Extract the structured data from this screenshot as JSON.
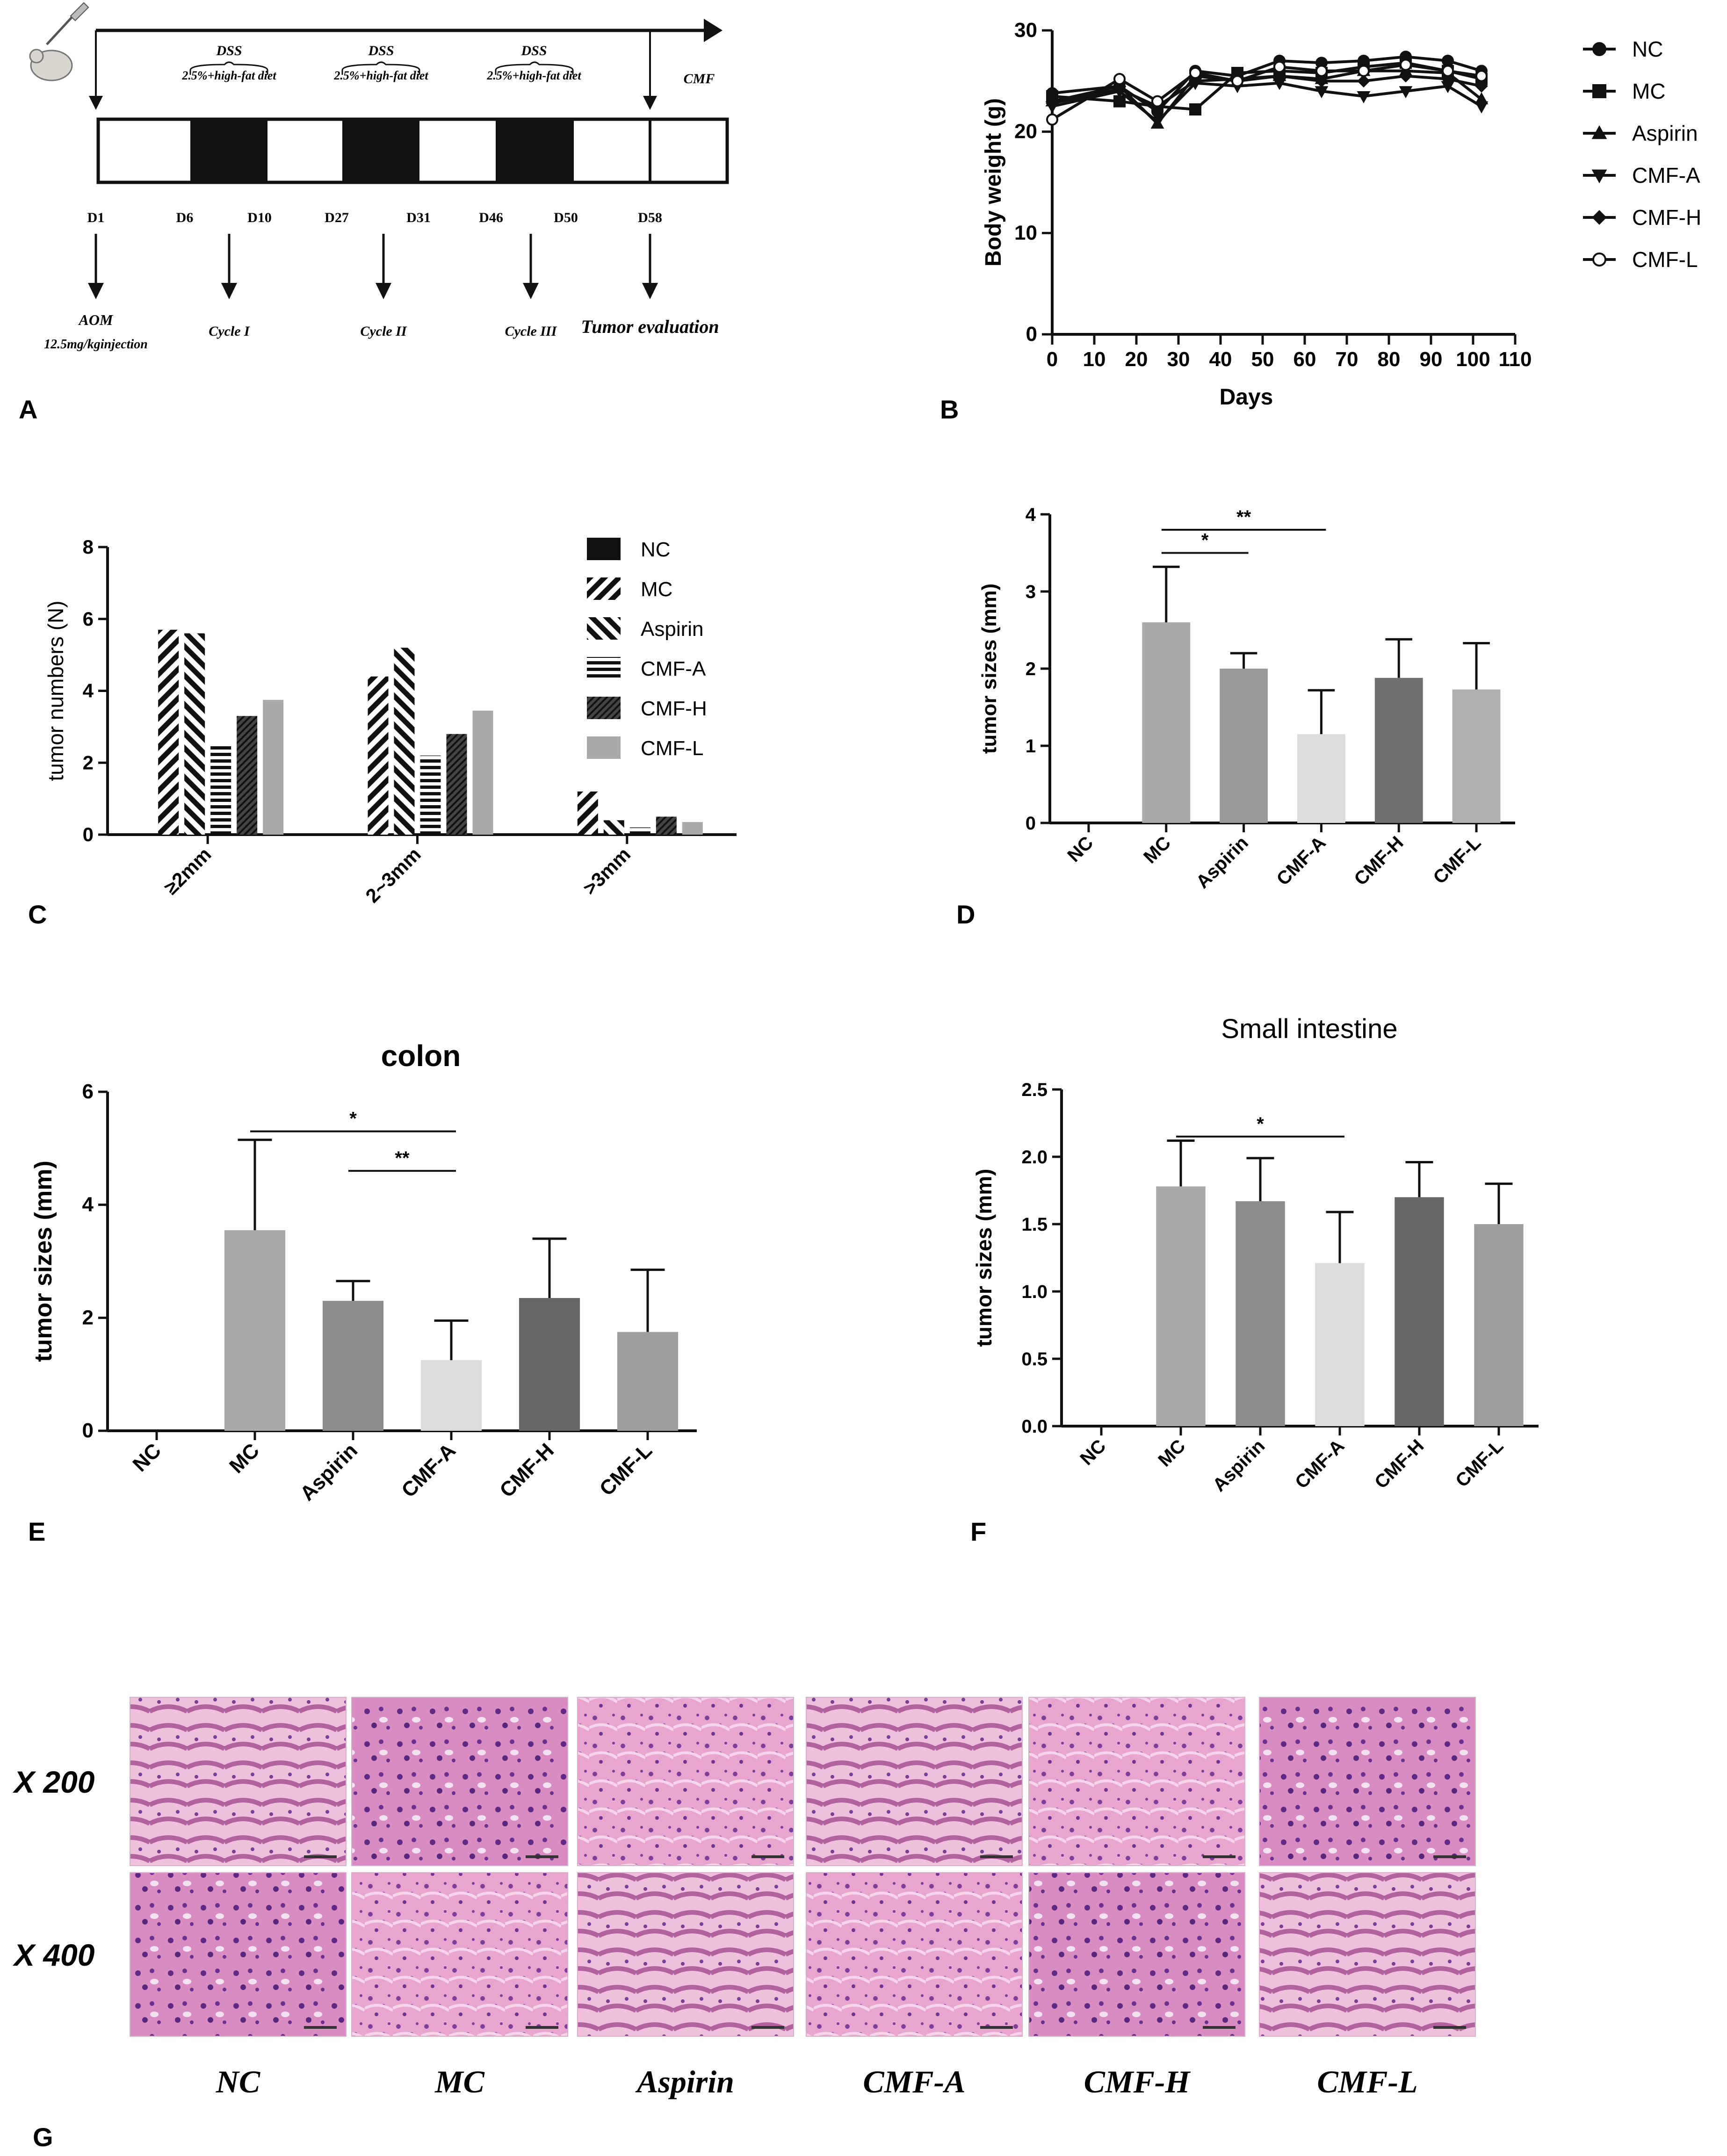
{
  "panel_letters": [
    "A",
    "B",
    "C",
    "D",
    "E",
    "F",
    "G"
  ],
  "protocol": {
    "days": [
      "D1",
      "D6",
      "D10",
      "D27",
      "D31",
      "D46",
      "D50",
      "D58"
    ],
    "dss_label": "DSS",
    "diet_label": "2.5%+high-fat diet",
    "cmf_label": "CMF",
    "aom_line1": "AOM",
    "aom_line2": "12.5mg/kginjection",
    "cycles": [
      "Cycle I",
      "Cycle II",
      "Cycle III"
    ],
    "tumor_eval": "Tumor evaluation"
  },
  "chart_data": [
    {
      "id": "B",
      "type": "line",
      "xlabel": "Days",
      "ylabel": "Body weight (g)",
      "xlim": [
        0,
        110
      ],
      "ylim": [
        0,
        30
      ],
      "xticks": [
        0,
        10,
        20,
        30,
        40,
        50,
        60,
        70,
        80,
        90,
        100,
        110
      ],
      "yticks": [
        0,
        10,
        20,
        30
      ],
      "x": [
        0,
        16,
        25,
        34,
        44,
        54,
        64,
        74,
        84,
        94,
        102
      ],
      "legend": "right",
      "series": [
        {
          "name": "NC",
          "marker": "circle-filled",
          "values": [
            23.8,
            24.5,
            22.0,
            26.0,
            25.5,
            27.0,
            26.8,
            27.0,
            27.4,
            27.0,
            26.0
          ]
        },
        {
          "name": "MC",
          "marker": "square",
          "values": [
            23.5,
            23.0,
            22.5,
            22.2,
            25.8,
            26.0,
            25.8,
            26.4,
            26.8,
            26.0,
            25.2
          ]
        },
        {
          "name": "Aspirin",
          "marker": "triangle-up",
          "values": [
            23.0,
            24.5,
            20.8,
            25.5,
            25.0,
            25.5,
            25.2,
            26.0,
            26.0,
            25.8,
            23.2
          ]
        },
        {
          "name": "CMF-A",
          "marker": "triangle-down",
          "values": [
            22.5,
            24.0,
            21.0,
            24.8,
            24.5,
            24.8,
            24.0,
            23.5,
            24.0,
            24.5,
            22.5
          ]
        },
        {
          "name": "CMF-H",
          "marker": "diamond",
          "values": [
            22.8,
            24.2,
            22.5,
            25.0,
            25.2,
            25.5,
            25.0,
            25.0,
            25.5,
            25.2,
            24.5
          ]
        },
        {
          "name": "CMF-L",
          "marker": "circle-open",
          "values": [
            21.2,
            25.2,
            23.0,
            25.8,
            25.0,
            26.4,
            26.0,
            26.0,
            26.6,
            26.0,
            25.5
          ]
        }
      ]
    },
    {
      "id": "C",
      "type": "bar",
      "ylabel": "tumor numbers (N)",
      "ylim": [
        0,
        8
      ],
      "yticks": [
        0,
        2,
        4,
        6,
        8
      ],
      "categories": [
        "≥2mm",
        "2~3mm",
        ">3mm"
      ],
      "legend": "top-right",
      "series": [
        {
          "name": "NC",
          "pattern": "solid-black",
          "values": [
            0,
            0,
            0
          ]
        },
        {
          "name": "MC",
          "pattern": "diag-right",
          "values": [
            5.7,
            4.4,
            1.2
          ]
        },
        {
          "name": "Aspirin",
          "pattern": "diag-left",
          "values": [
            5.6,
            5.2,
            0.4
          ]
        },
        {
          "name": "CMF-A",
          "pattern": "horizontal",
          "values": [
            2.5,
            2.2,
            0.2
          ]
        },
        {
          "name": "CMF-H",
          "pattern": "dense-diag",
          "values": [
            3.3,
            2.8,
            0.5
          ]
        },
        {
          "name": "CMF-L",
          "pattern": "solid-gray",
          "values": [
            3.75,
            3.45,
            0.35
          ]
        }
      ]
    },
    {
      "id": "D",
      "type": "bar",
      "ylabel": "tumor sizes (mm)",
      "ylim": [
        0,
        4
      ],
      "yticks": [
        0,
        1,
        2,
        3,
        4
      ],
      "ytick_decimals": 0,
      "categories": [
        "NC",
        "MC",
        "Aspirin",
        "CMF-A",
        "CMF-H",
        "CMF-L"
      ],
      "values": [
        0,
        2.6,
        2.0,
        1.15,
        1.88,
        1.73
      ],
      "errors": [
        0,
        0.72,
        0.2,
        0.57,
        0.5,
        0.6
      ],
      "colors": [
        "#ffffff",
        "#a9a9a9",
        "#999999",
        "#dcdcdc",
        "#6f6f6f",
        "#b0b0b0"
      ],
      "sig": [
        {
          "from": 1,
          "to": 2,
          "label": "*",
          "y": 3.5
        },
        {
          "from": 1,
          "to": 3,
          "label": "**",
          "y": 3.8
        }
      ]
    },
    {
      "id": "E",
      "type": "bar",
      "title": "colon",
      "ylabel": "tumor sizes  (mm)",
      "ylim": [
        0,
        6
      ],
      "yticks": [
        0,
        2,
        4,
        6
      ],
      "ytick_decimals": 0,
      "categories": [
        "NC",
        "MC",
        "Aspirin",
        "CMF-A",
        "CMF-H",
        "CMF-L"
      ],
      "values": [
        0,
        3.55,
        2.3,
        1.25,
        2.35,
        1.75
      ],
      "errors": [
        0,
        1.6,
        0.35,
        0.7,
        1.05,
        1.1
      ],
      "colors": [
        "#ffffff",
        "#a9a9a9",
        "#8c8c8c",
        "#dcdcdc",
        "#666666",
        "#9e9e9e"
      ],
      "sig": [
        {
          "from": 1,
          "to": 3,
          "label": "*",
          "y": 5.3
        },
        {
          "from": 2,
          "to": 3,
          "label": "**",
          "y": 4.6
        }
      ]
    },
    {
      "id": "F",
      "type": "bar",
      "title": "Small intestine",
      "ylabel": "tumor sizes  (mm)",
      "ylim": [
        0,
        2.5
      ],
      "yticks": [
        0,
        0.5,
        1,
        1.5,
        2,
        2.5
      ],
      "ytick_decimals": 1,
      "categories": [
        "NC",
        "MC",
        "Aspirin",
        "CMF-A",
        "CMF-H",
        "CMF-L"
      ],
      "values": [
        0,
        1.78,
        1.67,
        1.21,
        1.7,
        1.5
      ],
      "errors": [
        0,
        0.34,
        0.32,
        0.38,
        0.26,
        0.3
      ],
      "colors": [
        "#ffffff",
        "#a9a9a9",
        "#8c8c8c",
        "#dcdcdc",
        "#666666",
        "#9e9e9e"
      ],
      "sig": [
        {
          "from": 1,
          "to": 3,
          "label": "*",
          "y": 2.15
        }
      ]
    }
  ],
  "histology": {
    "rows": [
      "X 200",
      "X 400"
    ],
    "columns": [
      "NC",
      "MC",
      "Aspirin",
      "CMF-A",
      "CMF-H",
      "CMF-L"
    ]
  }
}
